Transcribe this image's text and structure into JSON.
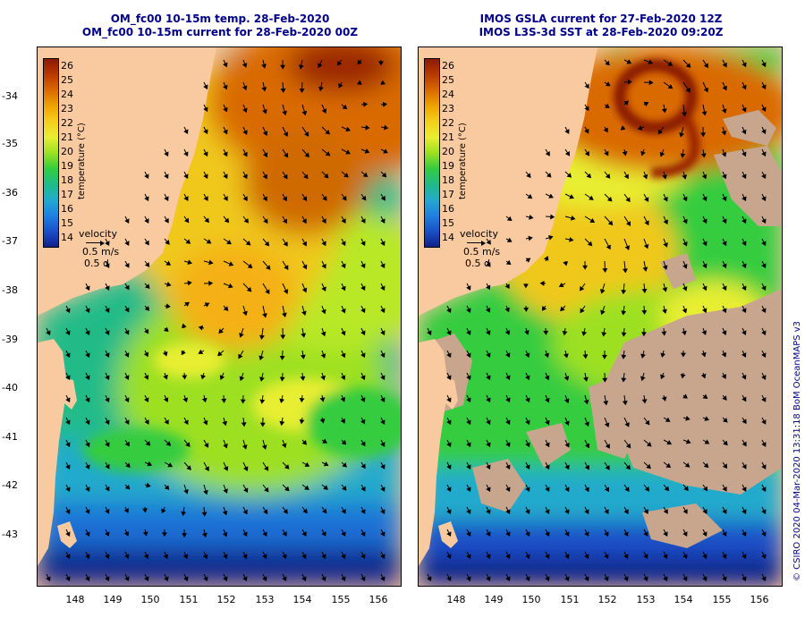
{
  "left_panel": {
    "title_line1": "OM_fc00 10-15m temp. 28-Feb-2020",
    "title_line2": "OM_fc00 10-15m current for 28-Feb-2020 00Z"
  },
  "right_panel": {
    "title_line1": "IMOS GSLA current for 27-Feb-2020 12Z",
    "title_line2": "IMOS L3S-3d SST at 28-Feb-2020 09:20Z"
  },
  "colorbar": {
    "title": "temperature (°C)",
    "labels": [
      "26",
      "25",
      "24",
      "23",
      "22",
      "21",
      "20",
      "19",
      "18",
      "17",
      "16",
      "15",
      "14"
    ],
    "colors": [
      "#8b1a00",
      "#b83a00",
      "#d96a00",
      "#eda400",
      "#f5cf1a",
      "#e8ee30",
      "#9de020",
      "#35cc40",
      "#20bb88",
      "#22aacc",
      "#2080e0",
      "#1a50c8",
      "#10208a"
    ]
  },
  "velocity_legend": {
    "title": "velocity",
    "speed": "0.5 m/s",
    "duration": "0.5 d"
  },
  "y_ticks": [
    "-34",
    "-35",
    "-36",
    "-37",
    "-38",
    "-39",
    "-40",
    "-41",
    "-42",
    "-43"
  ],
  "x_ticks": [
    "148",
    "149",
    "150",
    "151",
    "152",
    "153",
    "154",
    "155",
    "156"
  ],
  "credit": "© CSIRO 2020   04-Mar-2020 13:31:18 BoM OceanMAPS v3",
  "colors": {
    "land": "#f9c99f",
    "missing": "#c8a68e",
    "title": "#00008b"
  }
}
